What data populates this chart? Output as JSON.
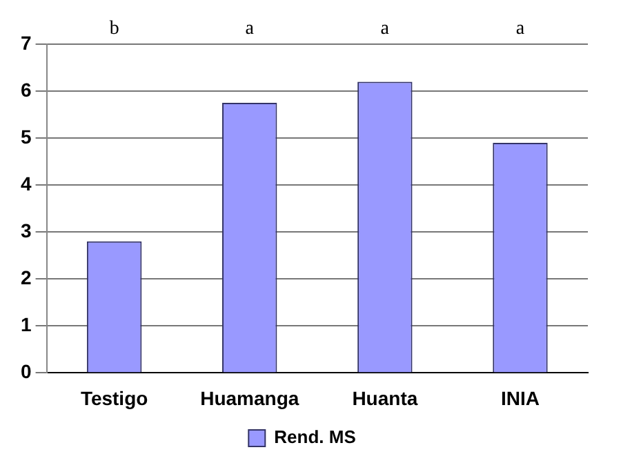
{
  "chart_data": {
    "type": "bar",
    "categories": [
      "Testigo",
      "Huamanga",
      "Huanta",
      "INIA"
    ],
    "series": [
      {
        "name": "Rend. MS",
        "color": "#9999ff",
        "values": [
          2.8,
          5.75,
          6.2,
          4.9
        ]
      }
    ],
    "ylim": [
      0,
      7
    ],
    "yticks": [
      0,
      1,
      2,
      3,
      4,
      5,
      6,
      7
    ],
    "grid": "y",
    "legend": "bottom",
    "annotations": [
      "b",
      "a",
      "a",
      "a"
    ]
  }
}
